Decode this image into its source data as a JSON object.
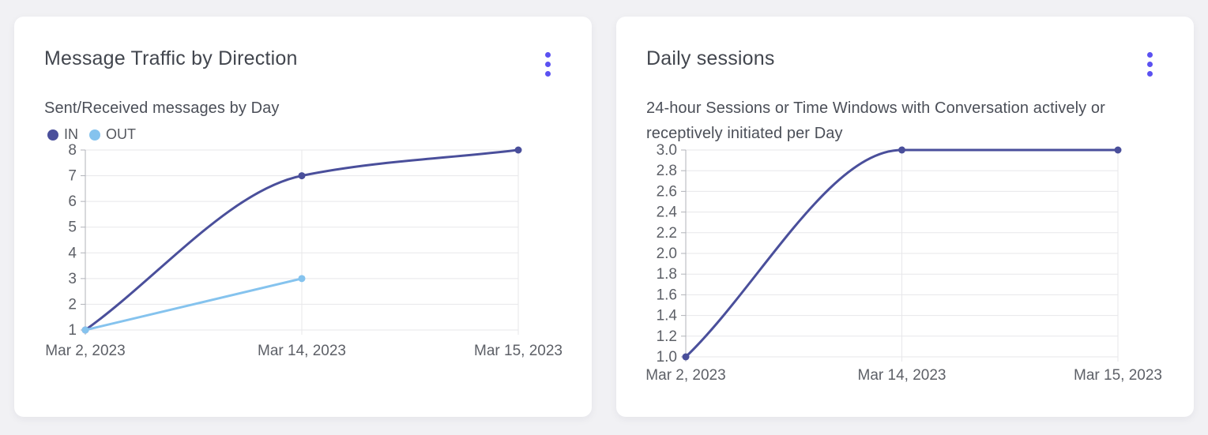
{
  "page": {
    "background_color": "#f1f1f4"
  },
  "colors": {
    "accent": "#5b51f1",
    "series_dark": "#4a4f9b",
    "series_light": "#85c3ee",
    "grid": "#e7e7ea",
    "axis": "#b1b3b9",
    "axis_text": "#5d6067"
  },
  "cards": [
    {
      "title": "Message Traffic by Direction",
      "subtitle": "Sent/Received messages by Day",
      "menu_icon": "kebab-menu-icon",
      "chart_data": {
        "type": "line",
        "title": "Message Traffic by Direction",
        "x": [
          "Mar 2, 2023",
          "Mar 14, 2023",
          "Mar 15, 2023"
        ],
        "y_ticks": [
          "8",
          "7",
          "6",
          "5",
          "4",
          "3",
          "2",
          "1"
        ],
        "ylim": [
          1,
          8
        ],
        "grid": true,
        "legend_position": "top-left",
        "series": [
          {
            "name": "IN",
            "color": "#4a4f9b",
            "values": [
              1,
              7,
              8
            ]
          },
          {
            "name": "OUT",
            "color": "#85c3ee",
            "values": [
              1,
              3,
              null
            ]
          }
        ]
      }
    },
    {
      "title": "Daily sessions",
      "subtitle": "24-hour Sessions or Time Windows with Conversation actively or receptively initiated per Day",
      "menu_icon": "kebab-menu-icon",
      "chart_data": {
        "type": "line",
        "title": "Daily sessions",
        "x": [
          "Mar 2, 2023",
          "Mar 14, 2023",
          "Mar 15, 2023"
        ],
        "y_ticks": [
          "3.0",
          "2.8",
          "2.6",
          "2.4",
          "2.2",
          "2.0",
          "1.8",
          "1.6",
          "1.4",
          "1.2",
          "1.0"
        ],
        "ylim": [
          1,
          3
        ],
        "grid": true,
        "legend_position": "none",
        "series": [
          {
            "name": "Daily sessions",
            "color": "#4a4f9b",
            "values": [
              1,
              3,
              3
            ]
          }
        ]
      }
    }
  ]
}
